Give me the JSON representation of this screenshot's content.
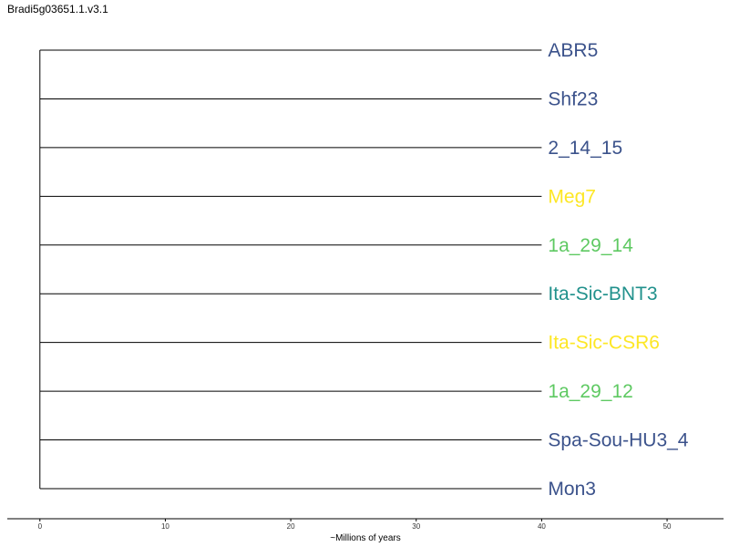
{
  "title": "Bradi5g03651.1.v3.1",
  "tree": {
    "tips": [
      {
        "label": "ABR5",
        "color": "#3b528b"
      },
      {
        "label": "Shf23",
        "color": "#3b528b"
      },
      {
        "label": "2_14_15",
        "color": "#3b528b"
      },
      {
        "label": "Meg7",
        "color": "#fde725"
      },
      {
        "label": "1a_29_14",
        "color": "#5ec962"
      },
      {
        "label": "Ita-Sic-BNT3",
        "color": "#21918c"
      },
      {
        "label": "Ita-Sic-CSR6",
        "color": "#fde725"
      },
      {
        "label": "1a_29_12",
        "color": "#5ec962"
      },
      {
        "label": "Spa-Sou-HU3_4",
        "color": "#3b528b"
      },
      {
        "label": "Mon3",
        "color": "#3b528b"
      }
    ],
    "root_age": 0,
    "tip_age": 40
  },
  "axis": {
    "label": "~Millions of years",
    "range": [
      -2.6,
      54.5
    ],
    "ticks": [
      0,
      10,
      20,
      30,
      40,
      50
    ]
  }
}
